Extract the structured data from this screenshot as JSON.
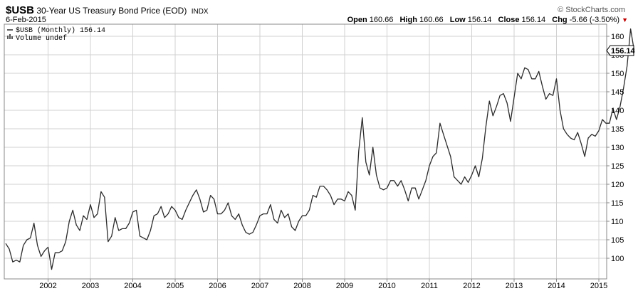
{
  "header": {
    "symbol": "$USB",
    "description": "30-Year US Treasury Bond Price (EOD)",
    "exchange": "INDX",
    "date": "6-Feb-2015",
    "brand": "© StockCharts.com",
    "open_label": "Open",
    "open": "160.66",
    "high_label": "High",
    "high": "160.66",
    "low_label": "Low",
    "low": "156.14",
    "close_label": "Close",
    "close": "156.14",
    "chg_label": "Chg",
    "chg": "-5.66 (-3.50%)",
    "chg_arrow": "▼"
  },
  "legend": {
    "series": "$USB (Monthly) 156.14",
    "volume": "Volume undef"
  },
  "last_price_label": "156.14",
  "colors": {
    "line": "#2b2b2b",
    "grid": "#d0d0d0",
    "down": "#c00000"
  },
  "chart_data": {
    "type": "line",
    "title": "30-Year US Treasury Bond Price (EOD)",
    "xlabel": "",
    "ylabel": "",
    "x_start": "2001-01",
    "frequency": "monthly",
    "x_ticks": [
      "2002",
      "2003",
      "2004",
      "2005",
      "2006",
      "2007",
      "2008",
      "2009",
      "2010",
      "2011",
      "2012",
      "2013",
      "2014",
      "2015"
    ],
    "y_ticks": [
      100,
      105,
      110,
      115,
      120,
      125,
      130,
      135,
      140,
      145,
      150,
      155,
      160
    ],
    "ylim": [
      96,
      164
    ],
    "grid": true,
    "legend": "top-left",
    "series": [
      {
        "name": "$USB (Monthly)",
        "values": [
          104,
          102.5,
          99,
          99.5,
          99,
          103.5,
          105,
          105.5,
          109.5,
          103.5,
          100.5,
          102,
          103,
          97,
          101.5,
          101.5,
          102,
          104.5,
          110,
          113,
          109,
          107.5,
          111.5,
          110.5,
          114.5,
          111,
          112,
          118,
          116.5,
          104.5,
          106,
          111,
          107.5,
          108,
          108,
          109.5,
          112.5,
          113,
          106,
          105.5,
          105,
          107.5,
          111.5,
          112,
          114,
          111,
          112,
          114,
          113,
          111,
          110.5,
          113,
          115,
          117,
          118.5,
          116,
          112.5,
          113,
          117,
          116,
          112,
          112,
          113,
          115,
          111.5,
          110.5,
          112,
          109,
          107,
          106.5,
          107,
          109,
          111.5,
          112,
          112,
          114.5,
          110.5,
          109.5,
          113,
          111,
          112,
          108.5,
          107.5,
          110,
          111.5,
          111.5,
          113,
          117,
          116.5,
          119.5,
          119.5,
          118.5,
          117,
          114.5,
          116,
          116,
          115.5,
          118,
          117,
          113,
          129,
          138,
          126,
          122.5,
          130,
          122.5,
          119,
          118.5,
          119,
          121,
          121,
          119.5,
          121,
          118.5,
          115.5,
          119,
          119,
          116,
          118.5,
          121,
          125,
          127.5,
          128.5,
          136.5,
          133.5,
          130.5,
          127.5,
          122,
          121,
          120,
          122,
          120.5,
          122.5,
          125,
          122,
          127,
          135.5,
          142.5,
          138.5,
          141,
          144,
          144.5,
          142,
          137,
          143.5,
          150,
          148.5,
          151.5,
          151,
          148.5,
          148.5,
          150.5,
          146.5,
          143,
          144.5,
          144,
          148.5,
          140,
          135,
          133.5,
          132.5,
          132,
          134,
          131,
          127.5,
          132.5,
          133.5,
          133,
          134.5,
          137.5,
          136.5,
          136.5,
          140.5,
          137.5,
          141,
          146,
          152,
          162,
          156.14
        ]
      }
    ]
  }
}
